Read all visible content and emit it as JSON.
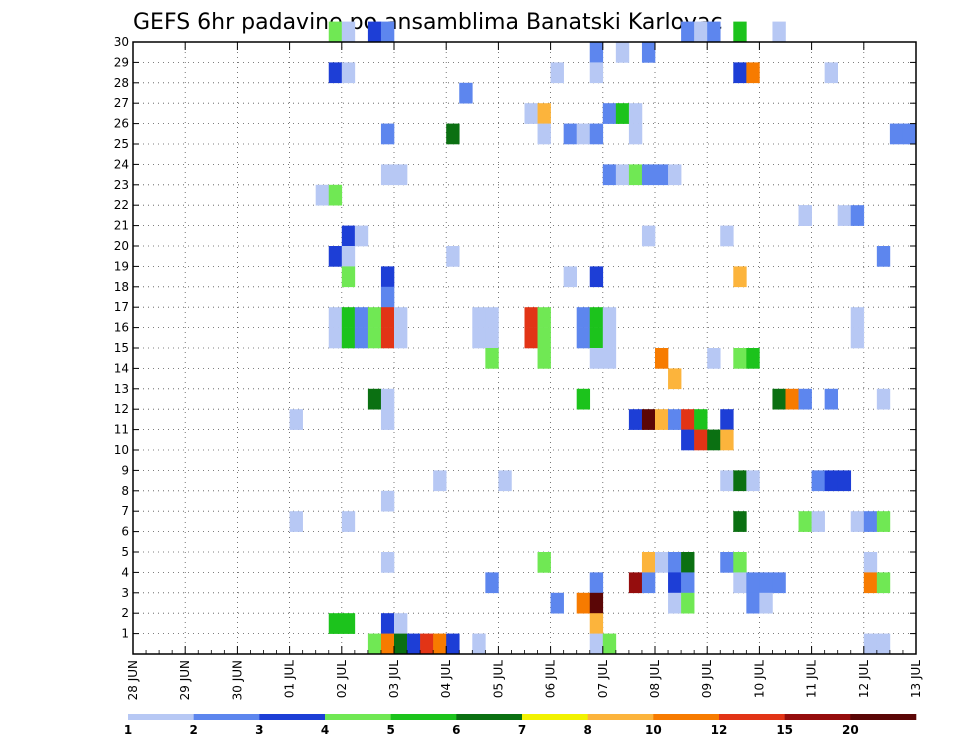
{
  "chart_data": {
    "type": "heatmap",
    "title": "GEFS 6hr padavine po ansamblima Banatski Karlovac",
    "y_categories": [
      "1",
      "2",
      "3",
      "4",
      "5",
      "6",
      "7",
      "8",
      "9",
      "10",
      "11",
      "12",
      "13",
      "14",
      "15",
      "16",
      "17",
      "18",
      "19",
      "20",
      "21",
      "22",
      "23",
      "24",
      "25",
      "26",
      "27",
      "28",
      "29",
      "30"
    ],
    "ylim": [
      0,
      30
    ],
    "x_tick_labels": [
      "28 JUN",
      "29 JUN",
      "30 JUN",
      "01 JUL",
      "02 JUL",
      "03 JUL",
      "04 JUL",
      "05 JUL",
      "06 JUL",
      "07 JUL",
      "08 JUL",
      "09 JUL",
      "10 JUL",
      "11 JUL",
      "12 JUL",
      "13 JUL"
    ],
    "x_range_steps": [
      0,
      60
    ],
    "x_step_hours": 6,
    "grid": true,
    "colorbar": {
      "boundaries": [
        "1",
        "2",
        "3",
        "4",
        "5",
        "6",
        "7",
        "8",
        "10",
        "12",
        "15",
        "20"
      ],
      "colors": [
        "#b7c8f4",
        "#5d86ee",
        "#1d3ed6",
        "#70e854",
        "#1cc31c",
        "#0b7012",
        "#f2f200",
        "#fcb43c",
        "#f77b00",
        "#e23416",
        "#950d0d",
        "#5b0606"
      ]
    },
    "cells": [
      [
        15,
        30,
        3
      ],
      [
        16,
        30,
        0
      ],
      [
        18,
        30,
        2
      ],
      [
        19,
        30,
        1
      ],
      [
        42,
        30,
        1
      ],
      [
        43,
        30,
        0
      ],
      [
        44,
        30,
        1
      ],
      [
        46,
        30,
        4
      ],
      [
        49,
        30,
        0
      ],
      [
        35,
        29,
        1
      ],
      [
        37,
        29,
        0
      ],
      [
        39,
        29,
        1
      ],
      [
        15,
        28,
        2
      ],
      [
        16,
        28,
        0
      ],
      [
        32,
        28,
        0
      ],
      [
        35,
        28,
        0
      ],
      [
        46,
        28,
        2
      ],
      [
        47,
        28,
        8
      ],
      [
        53,
        28,
        0
      ],
      [
        25,
        27,
        1
      ],
      [
        30,
        26,
        0
      ],
      [
        31,
        26,
        7
      ],
      [
        36,
        26,
        1
      ],
      [
        37,
        26,
        4
      ],
      [
        38,
        26,
        0
      ],
      [
        19,
        25,
        1
      ],
      [
        24,
        25,
        5
      ],
      [
        31,
        25,
        0
      ],
      [
        33,
        25,
        1
      ],
      [
        34,
        25,
        0
      ],
      [
        35,
        25,
        1
      ],
      [
        38,
        25,
        0
      ],
      [
        58,
        25,
        1
      ],
      [
        59,
        25,
        1
      ],
      [
        19,
        23,
        0
      ],
      [
        20,
        23,
        0
      ],
      [
        36,
        23,
        1
      ],
      [
        37,
        23,
        0
      ],
      [
        38,
        23,
        3
      ],
      [
        39,
        23,
        1
      ],
      [
        40,
        23,
        1
      ],
      [
        41,
        23,
        0
      ],
      [
        14,
        22,
        0
      ],
      [
        15,
        22,
        3
      ],
      [
        51,
        21,
        0
      ],
      [
        51,
        21,
        0
      ],
      [
        54,
        21,
        0
      ],
      [
        55,
        21,
        1
      ],
      [
        16,
        20,
        2
      ],
      [
        17,
        20,
        0
      ],
      [
        39,
        20,
        0
      ],
      [
        45,
        20,
        0
      ],
      [
        15,
        19,
        2
      ],
      [
        16,
        19,
        0
      ],
      [
        24,
        19,
        0
      ],
      [
        57,
        19,
        1
      ],
      [
        16,
        18,
        3
      ],
      [
        19,
        18,
        2
      ],
      [
        33,
        18,
        0
      ],
      [
        35,
        18,
        2
      ],
      [
        46,
        18,
        7
      ],
      [
        19,
        17,
        1
      ],
      [
        15,
        16,
        0
      ],
      [
        16,
        16,
        4
      ],
      [
        17,
        16,
        1
      ],
      [
        18,
        16,
        3
      ],
      [
        19,
        16,
        9
      ],
      [
        20,
        16,
        0
      ],
      [
        26,
        16,
        0
      ],
      [
        27,
        16,
        0
      ],
      [
        30,
        16,
        9
      ],
      [
        31,
        16,
        3
      ],
      [
        34,
        16,
        1
      ],
      [
        35,
        16,
        4
      ],
      [
        36,
        16,
        0
      ],
      [
        55,
        16,
        0
      ],
      [
        15,
        15,
        0
      ],
      [
        16,
        15,
        4
      ],
      [
        17,
        15,
        1
      ],
      [
        18,
        15,
        3
      ],
      [
        19,
        15,
        9
      ],
      [
        20,
        15,
        0
      ],
      [
        26,
        15,
        0
      ],
      [
        27,
        15,
        0
      ],
      [
        30,
        15,
        9
      ],
      [
        31,
        15,
        3
      ],
      [
        34,
        15,
        1
      ],
      [
        35,
        15,
        4
      ],
      [
        36,
        15,
        0
      ],
      [
        55,
        15,
        0
      ],
      [
        27,
        14,
        3
      ],
      [
        31,
        14,
        3
      ],
      [
        35,
        14,
        0
      ],
      [
        36,
        14,
        0
      ],
      [
        40,
        14,
        8
      ],
      [
        44,
        14,
        0
      ],
      [
        46,
        14,
        3
      ],
      [
        47,
        14,
        4
      ],
      [
        41,
        13,
        7
      ],
      [
        18,
        12,
        5
      ],
      [
        19,
        12,
        0
      ],
      [
        34,
        12,
        4
      ],
      [
        49,
        12,
        5
      ],
      [
        50,
        12,
        8
      ],
      [
        51,
        12,
        1
      ],
      [
        53,
        12,
        1
      ],
      [
        57,
        12,
        0
      ],
      [
        12,
        11,
        0
      ],
      [
        19,
        11,
        0
      ],
      [
        38,
        11,
        2
      ],
      [
        39,
        11,
        11
      ],
      [
        40,
        11,
        7
      ],
      [
        41,
        11,
        1
      ],
      [
        42,
        11,
        9
      ],
      [
        43,
        11,
        4
      ],
      [
        45,
        11,
        2
      ],
      [
        42,
        10,
        2
      ],
      [
        43,
        10,
        9
      ],
      [
        44,
        10,
        5
      ],
      [
        45,
        10,
        7
      ],
      [
        23,
        8,
        0
      ],
      [
        28,
        8,
        0
      ],
      [
        45,
        8,
        0
      ],
      [
        46,
        8,
        5
      ],
      [
        47,
        8,
        0
      ],
      [
        52,
        8,
        1
      ],
      [
        53,
        8,
        2
      ],
      [
        54,
        8,
        2
      ],
      [
        19,
        7,
        0
      ],
      [
        12,
        6,
        0
      ],
      [
        16,
        6,
        0
      ],
      [
        46,
        6,
        5
      ],
      [
        51,
        6,
        3
      ],
      [
        52,
        6,
        0
      ],
      [
        55,
        6,
        0
      ],
      [
        56,
        6,
        1
      ],
      [
        57,
        6,
        3
      ],
      [
        19,
        4,
        0
      ],
      [
        31,
        4,
        3
      ],
      [
        39,
        4,
        7
      ],
      [
        40,
        4,
        0
      ],
      [
        41,
        4,
        1
      ],
      [
        42,
        4,
        5
      ],
      [
        45,
        4,
        1
      ],
      [
        46,
        4,
        3
      ],
      [
        56,
        4,
        0
      ],
      [
        27,
        3,
        1
      ],
      [
        35,
        3,
        1
      ],
      [
        38,
        3,
        10
      ],
      [
        39,
        3,
        1
      ],
      [
        41,
        3,
        2
      ],
      [
        42,
        3,
        1
      ],
      [
        46,
        3,
        0
      ],
      [
        47,
        3,
        1
      ],
      [
        48,
        3,
        1
      ],
      [
        49,
        3,
        1
      ],
      [
        56,
        3,
        8
      ],
      [
        57,
        3,
        3
      ],
      [
        32,
        2,
        1
      ],
      [
        34,
        2,
        8
      ],
      [
        35,
        2,
        11
      ],
      [
        41,
        2,
        0
      ],
      [
        42,
        2,
        3
      ],
      [
        47,
        2,
        1
      ],
      [
        48,
        2,
        0
      ],
      [
        15,
        1,
        4
      ],
      [
        16,
        1,
        4
      ],
      [
        19,
        1,
        2
      ],
      [
        20,
        1,
        0
      ],
      [
        35,
        1,
        7
      ],
      [
        18,
        0,
        3
      ],
      [
        19,
        0,
        8
      ],
      [
        20,
        0,
        5
      ],
      [
        21,
        0,
        2
      ],
      [
        22,
        0,
        9
      ],
      [
        23,
        0,
        8
      ],
      [
        24,
        0,
        2
      ],
      [
        26,
        0,
        0
      ],
      [
        35,
        0,
        0
      ],
      [
        36,
        0,
        3
      ],
      [
        56,
        0,
        0
      ],
      [
        57,
        0,
        0
      ]
    ]
  }
}
